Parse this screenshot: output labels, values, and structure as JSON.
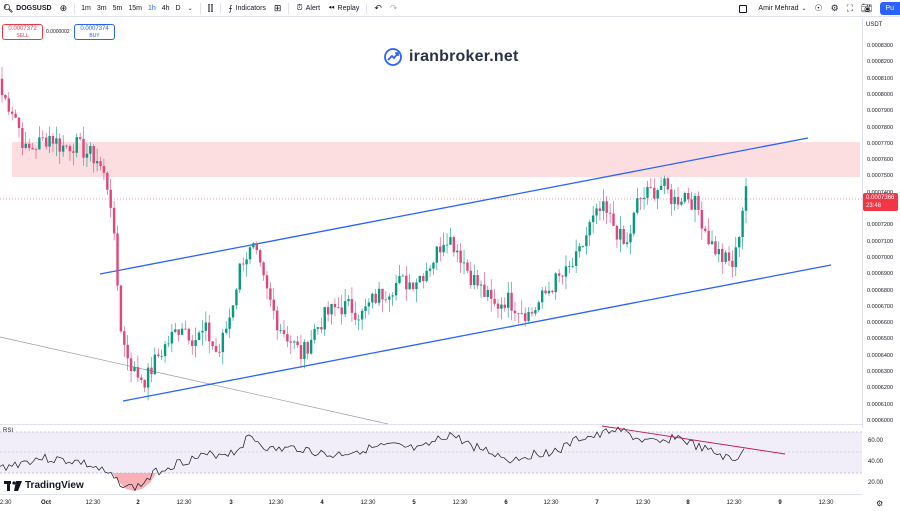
{
  "toolbar": {
    "symbol": "DOGSUSD",
    "timeframes": [
      "1m",
      "3m",
      "5m",
      "15m",
      "1h",
      "4h",
      "D"
    ],
    "active_timeframe": "1h",
    "indicators_label": "Indicators",
    "alert_label": "Alert",
    "replay_label": "Replay",
    "user_name": "Amir Mehrad",
    "publish_label": "Pu"
  },
  "order_panel": {
    "sell_price": "0.0007372",
    "sell_label": "SELL",
    "spread": "0.0000002",
    "buy_price": "0.0007374",
    "buy_label": "BUY"
  },
  "watermark": {
    "text": "iranbroker.net"
  },
  "price_axis": {
    "currency": "USDT",
    "ticks": [
      "0.0008300",
      "0.0008200",
      "0.0008100",
      "0.0008000",
      "0.0007900",
      "0.0007800",
      "0.0007700",
      "0.0007600",
      "0.0007500",
      "0.0007400",
      "0.0007300",
      "0.0007200",
      "0.0007100",
      "0.0007000",
      "0.0006900",
      "0.0006800",
      "0.0006700",
      "0.0006600",
      "0.0006500",
      "0.0006400",
      "0.0006300",
      "0.0006200",
      "0.0006100",
      "0.0006000"
    ],
    "current_price": "0.0007366",
    "countdown": "23:48"
  },
  "rsi": {
    "label": "RSI",
    "ticks": [
      "60.00",
      "40.00",
      "20.00"
    ]
  },
  "time_axis": {
    "ticks": [
      "12:30",
      "Oct",
      "12:30",
      "2",
      "12:30",
      "3",
      "12:30",
      "4",
      "12:30",
      "5",
      "12:30",
      "6",
      "12:30",
      "7",
      "12:30",
      "8",
      "12:30",
      "9",
      "12:30"
    ]
  },
  "branding": {
    "tradingview": "TradingView"
  },
  "colors": {
    "bull": "#089981",
    "bear": "#f23645",
    "bear_candle": "#e0457b",
    "channel": "#2962ff",
    "zone": "#fcd7db",
    "rsi_line": "#131722",
    "rsi_band": "#ede7f6"
  },
  "chart_data": {
    "type": "candlestick",
    "channel": {
      "upper": [
        [
          0.00069,
          0.00078
        ],
        [
          0.00069,
          0.00079
        ]
      ],
      "note": ""
    },
    "resistance_zone": [
      0.000749,
      0.000771
    ],
    "close_series_sampled": [
      0.0008,
      0.00079,
      0.000765,
      0.00077,
      0.000775,
      0.000768,
      0.00077,
      0.000765,
      0.00076,
      0.00074,
      0.00065,
      0.00063,
      0.000625,
      0.00064,
      0.00065,
      0.00066,
      0.00065,
      0.000655,
      0.00064,
      0.000665,
      0.0007,
      0.000705,
      0.00068,
      0.00066,
      0.00065,
      0.00064,
      0.000655,
      0.000665,
      0.00067,
      0.00067,
      0.000665,
      0.000675,
      0.00068,
      0.000685,
      0.000685,
      0.00069,
      0.0007,
      0.000715,
      0.000705,
      0.00069,
      0.00068,
      0.00067,
      0.000675,
      0.00067,
      0.000665,
      0.000675,
      0.000685,
      0.00069,
      0.0007,
      0.00072,
      0.00073,
      0.00072,
      0.000705,
      0.000735,
      0.00074,
      0.000745,
      0.000735,
      0.00074,
      0.00073,
      0.00071,
      0.0007,
      0.000695,
      0.000745
    ],
    "rsi_levels": [
      70,
      50,
      30
    ]
  }
}
